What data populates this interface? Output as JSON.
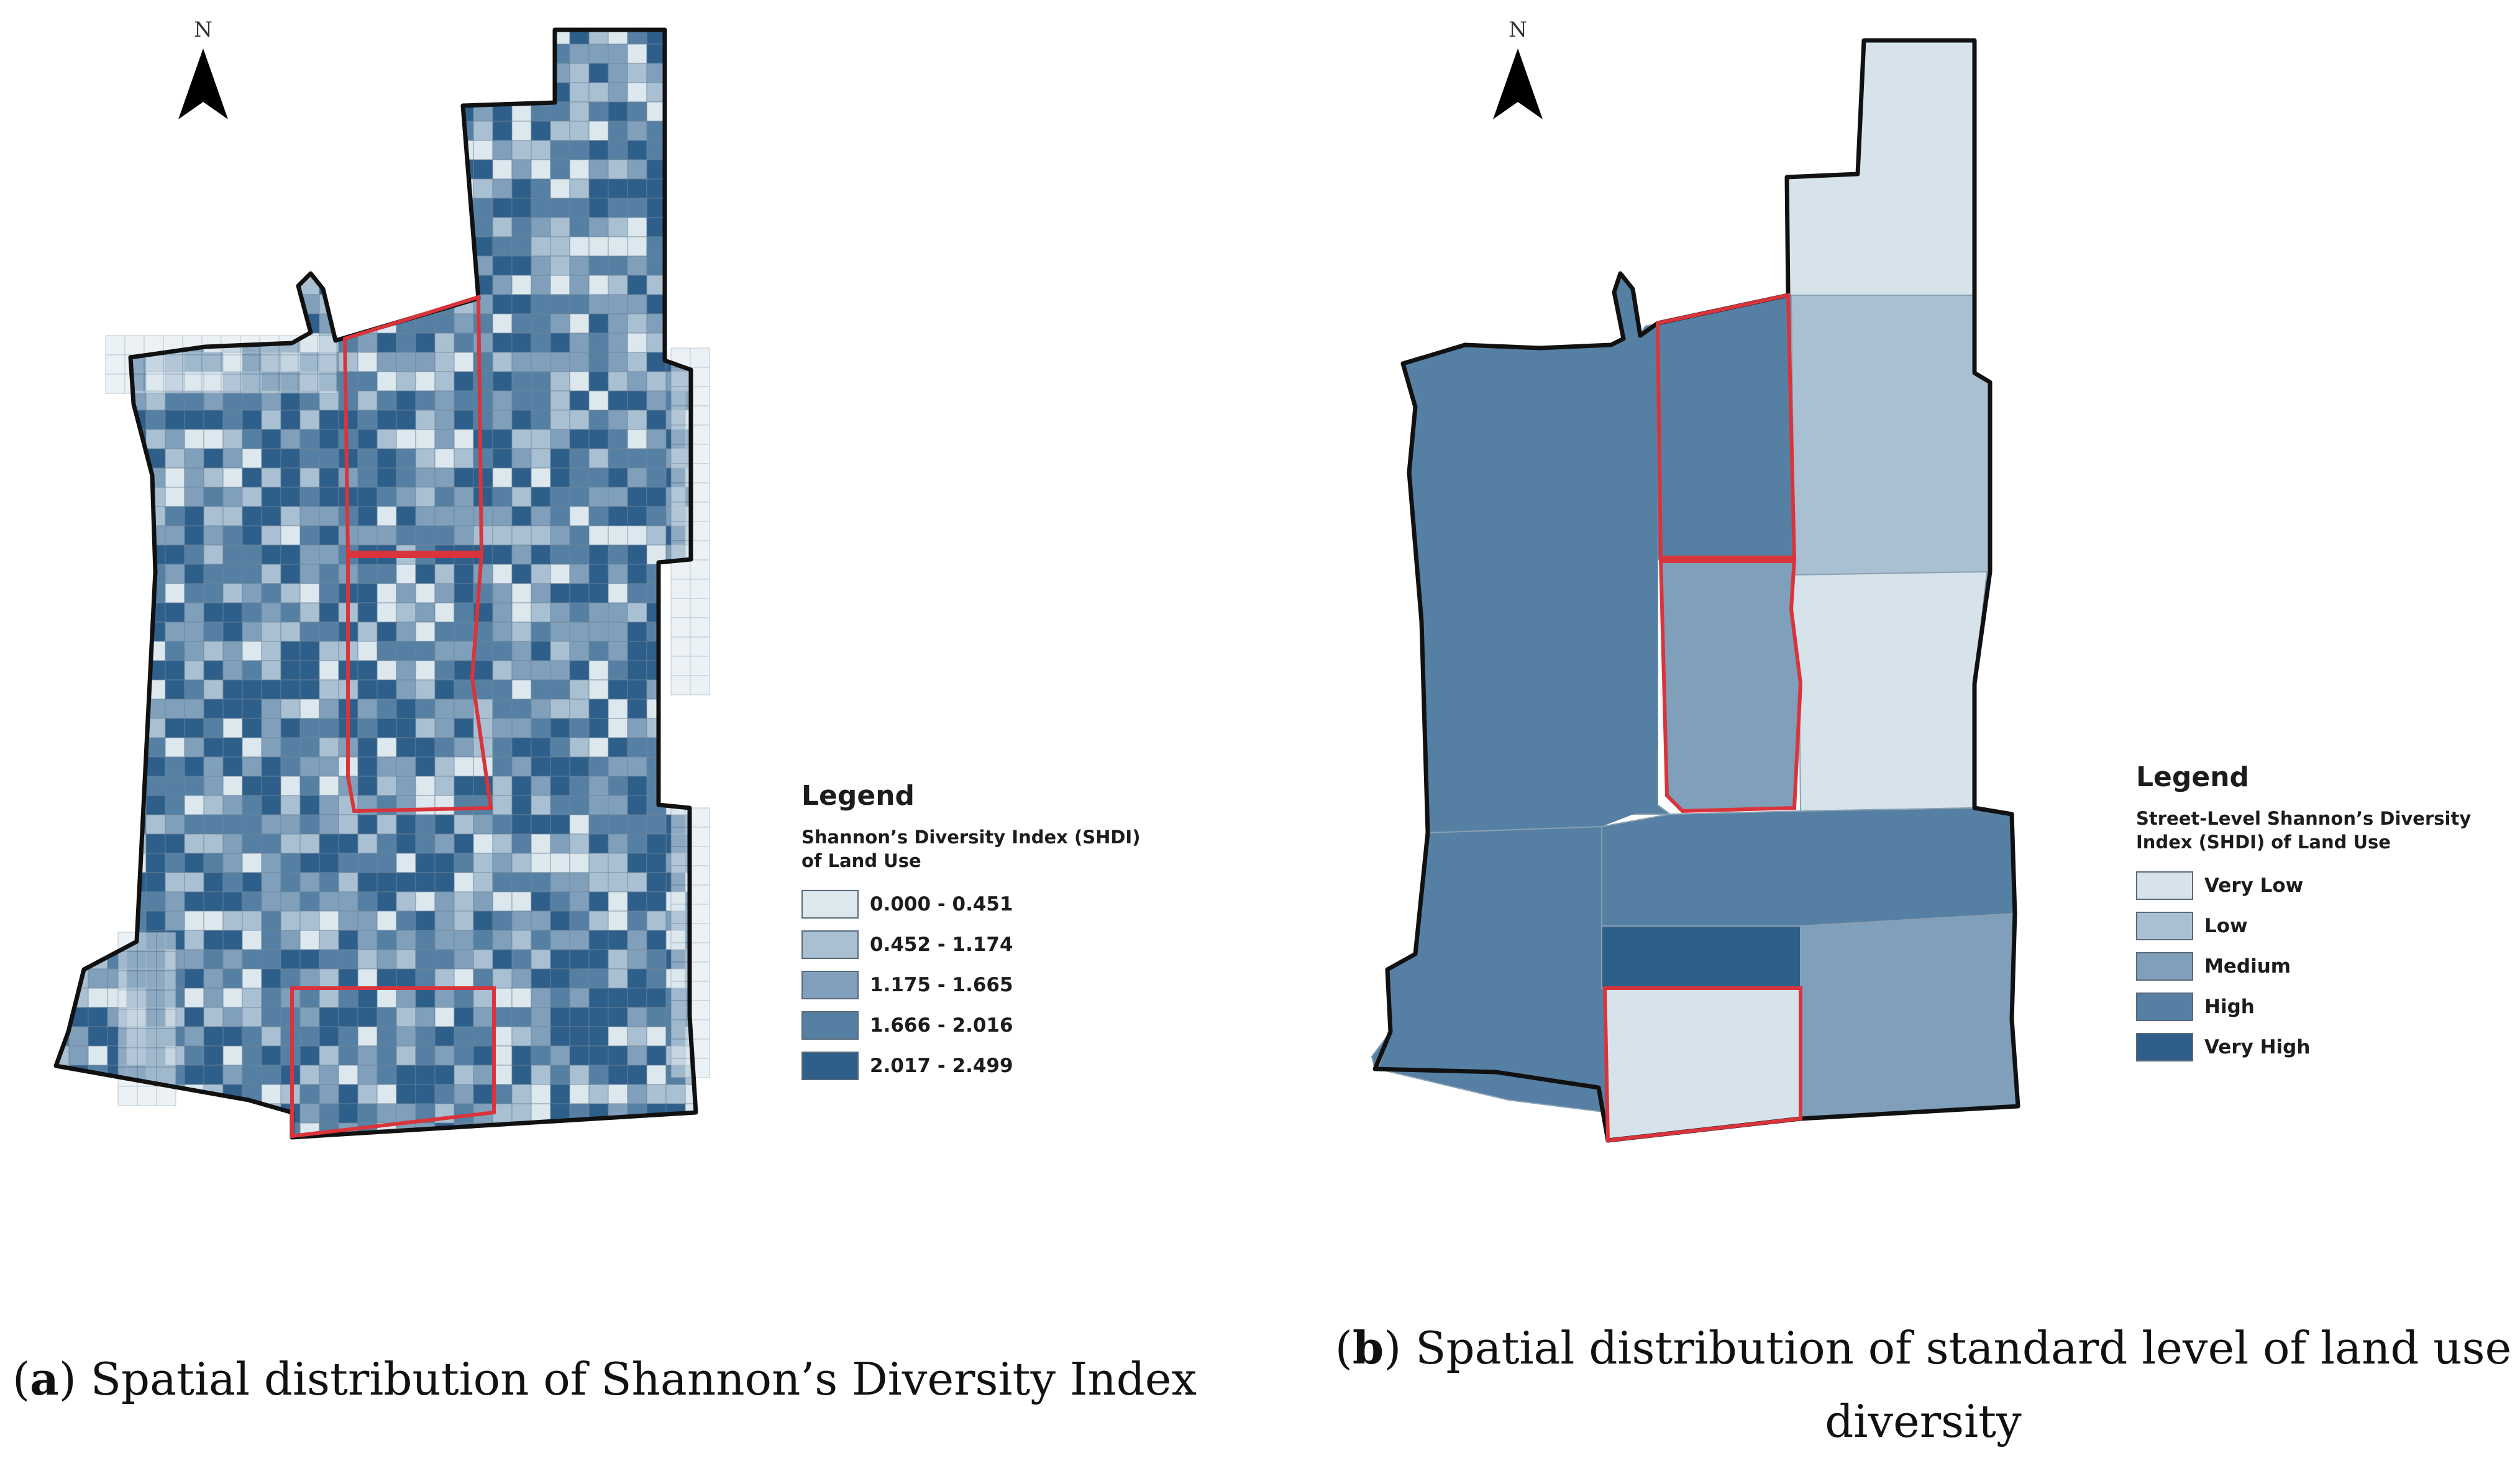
{
  "panel_a": {
    "north_label": "N",
    "legend": {
      "heading": "Legend",
      "subtitle": "Shannon’s Diversity Index (SHDI) of Land Use",
      "classes": [
        {
          "label": "0.000 - 0.451",
          "color": "#dce7ee"
        },
        {
          "label": "0.452 - 1.174",
          "color": "#a9c0d2"
        },
        {
          "label": "1.175 - 1.665",
          "color": "#7f9fbb"
        },
        {
          "label": "1.666 - 2.016",
          "color": "#5580a4"
        },
        {
          "label": "2.017 - 2.499",
          "color": "#2e5f8a"
        }
      ]
    },
    "caption_letter": "a",
    "caption_text": " Spatial distribution of Shannon’s Diversity Index"
  },
  "panel_b": {
    "north_label": "N",
    "legend": {
      "heading": "Legend",
      "subtitle": "Street-Level Shannon’s Diversity Index (SHDI) of Land Use",
      "classes": [
        {
          "label": "Very Low",
          "color": "#d6e3ea"
        },
        {
          "label": "Low",
          "color": "#a9c0d2"
        },
        {
          "label": "Medium",
          "color": "#7f9fbb"
        },
        {
          "label": "High",
          "color": "#5580a4"
        },
        {
          "label": "Very High",
          "color": "#2e5f8a"
        }
      ]
    },
    "caption_letter": "b",
    "caption_text": " Spatial distribution of standard level of land use diversity"
  },
  "colors": {
    "boundary": "#111111",
    "highlight": "#d9343b",
    "grid_line": "#6f8599"
  }
}
